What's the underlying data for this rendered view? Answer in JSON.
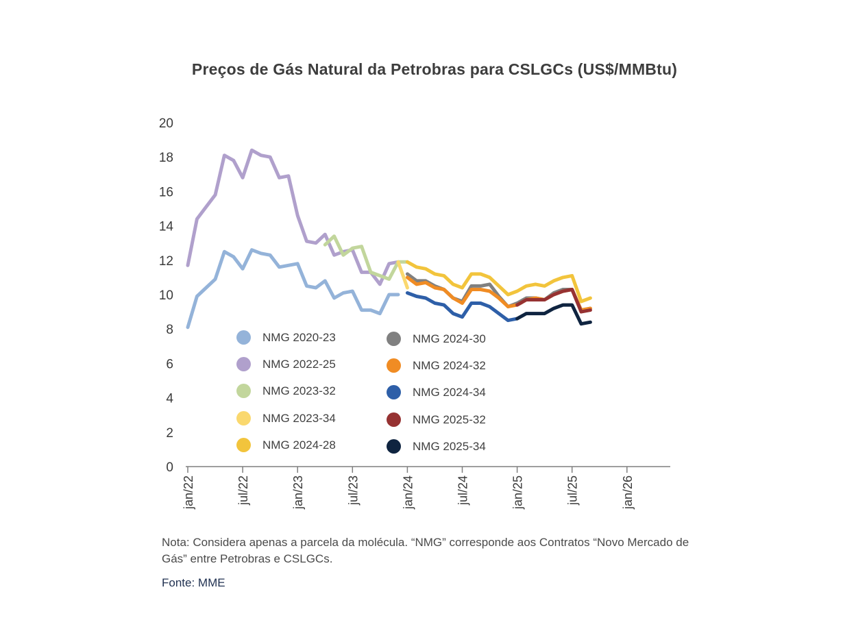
{
  "chart_data": {
    "type": "line",
    "title": "Preços de Gás Natural da Petrobras para CSLGCs (US$/MMBtu)",
    "xlabel": "",
    "ylabel": "",
    "ylim": [
      0,
      20
    ],
    "yticks": [
      0,
      2,
      4,
      6,
      8,
      10,
      12,
      14,
      16,
      18,
      20
    ],
    "xticks": [
      "jan/22",
      "jul/22",
      "jan/23",
      "jul/23",
      "jan/24",
      "jul/24",
      "jan/25",
      "jul/25",
      "jan/26"
    ],
    "x_unit": "month",
    "x_start": "2022-01",
    "grid": false,
    "series": [
      {
        "name": "NMG 2020-23",
        "color": "#94b3d9",
        "start": "2022-01",
        "values": [
          8.1,
          9.9,
          10.4,
          10.9,
          12.5,
          12.2,
          11.5,
          12.6,
          12.4,
          12.3,
          11.6,
          11.7,
          11.8,
          10.5,
          10.4,
          10.8,
          9.8,
          10.1,
          10.2,
          9.1,
          9.1,
          8.9,
          10.0,
          10.0
        ]
      },
      {
        "name": "NMG 2022-25",
        "color": "#b0a0cc",
        "start": "2022-01",
        "values": [
          11.7,
          14.4,
          15.1,
          15.8,
          18.1,
          17.8,
          16.8,
          18.4,
          18.1,
          18.0,
          16.8,
          16.9,
          14.6,
          13.1,
          13.0,
          13.5,
          12.3,
          12.5,
          12.6,
          11.3,
          11.3,
          10.6,
          11.8,
          11.9
        ]
      },
      {
        "name": "NMG 2023-32",
        "color": "#c2d69c",
        "start": "2023-04",
        "values": [
          12.9,
          13.4,
          12.3,
          12.7,
          12.8,
          11.3,
          11.1,
          10.9,
          11.9,
          11.9
        ]
      },
      {
        "name": "NMG 2023-34",
        "color": "#fad86e",
        "start": "2023-12",
        "values": [
          11.9,
          10.4
        ]
      },
      {
        "name": "NMG 2024-28",
        "color": "#f2c43c",
        "start": "2024-01",
        "values": [
          11.9,
          11.6,
          11.5,
          11.2,
          11.1,
          10.6,
          10.4,
          11.2,
          11.2,
          11.0,
          10.5,
          10.0,
          10.2,
          10.5,
          10.6,
          10.5,
          10.8,
          11.0,
          11.1,
          9.6,
          9.8
        ]
      },
      {
        "name": "NMG 2024-30",
        "color": "#808080",
        "start": "2024-01",
        "values": [
          11.2,
          10.8,
          10.8,
          10.5,
          10.3,
          9.8,
          9.6,
          10.5,
          10.5,
          10.6,
          9.9,
          9.3,
          9.5,
          9.8,
          9.8,
          9.7,
          10.1,
          10.3,
          10.3,
          9.1,
          9.2
        ]
      },
      {
        "name": "NMG 2024-32",
        "color": "#f08c24",
        "start": "2024-01",
        "values": [
          11.0,
          10.6,
          10.7,
          10.4,
          10.3,
          9.8,
          9.5,
          10.3,
          10.3,
          10.2,
          9.8,
          9.3,
          9.4,
          9.7,
          9.8,
          9.7,
          10.0,
          10.2,
          10.3,
          9.1,
          9.2
        ]
      },
      {
        "name": "NMG 2024-34",
        "color": "#2e5fa8",
        "start": "2024-01",
        "values": [
          10.1,
          9.9,
          9.8,
          9.5,
          9.4,
          8.9,
          8.7,
          9.5,
          9.5,
          9.3,
          8.9,
          8.5,
          8.6
        ]
      },
      {
        "name": "NMG 2025-32",
        "color": "#963232",
        "start": "2025-01",
        "values": [
          9.4,
          9.7,
          9.7,
          9.7,
          10.0,
          10.2,
          10.3,
          9.0,
          9.1
        ]
      },
      {
        "name": "NMG 2025-34",
        "color": "#0f2440",
        "start": "2025-01",
        "values": [
          8.6,
          8.9,
          8.9,
          8.9,
          9.2,
          9.4,
          9.4,
          8.3,
          8.4
        ]
      }
    ]
  },
  "note": "Nota: Considera apenas a parcela da molécula. “NMG” corresponde aos Contratos “Novo Mercado de Gás” entre Petrobras e CSLGCs.",
  "source": "Fonte: MME"
}
